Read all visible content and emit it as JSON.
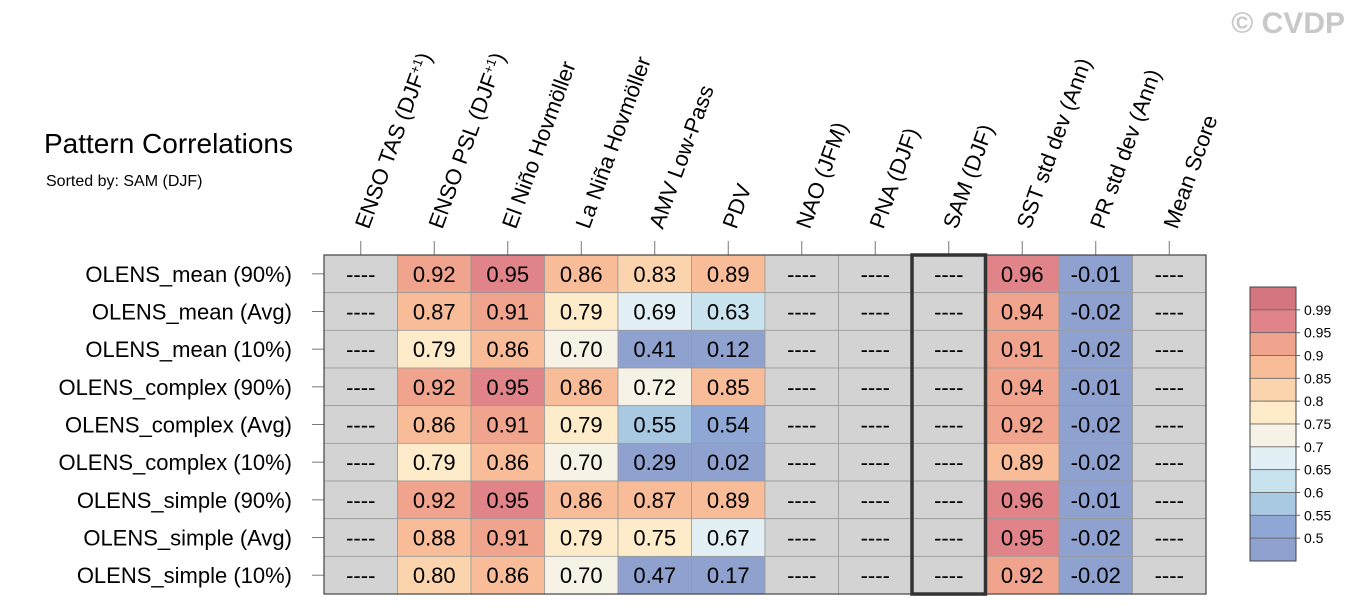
{
  "chart_data": {
    "type": "heatmap",
    "title": "Pattern Correlations",
    "subtitle": "Sorted by: SAM (DJF)",
    "watermark": "© CVDP",
    "columns": [
      "ENSO TAS (DJF+1)",
      "ENSO PSL (DJF+1)",
      "El Niño Hovmöller",
      "La Niña Hovmöller",
      "AMV Low-Pass",
      "PDV",
      "NAO (JFM)",
      "PNA (DJF)",
      "SAM (DJF)",
      "SST std dev (Ann)",
      "PR std dev (Ann)",
      "Mean Score"
    ],
    "rows": [
      "OLENS_mean (90%)",
      "OLENS_mean (Avg)",
      "OLENS_mean (10%)",
      "OLENS_complex (90%)",
      "OLENS_complex (Avg)",
      "OLENS_complex (10%)",
      "OLENS_simple (90%)",
      "OLENS_simple (Avg)",
      "OLENS_simple (10%)"
    ],
    "values": [
      [
        "----",
        "0.92",
        "0.95",
        "0.86",
        "0.83",
        "0.89",
        "----",
        "----",
        "----",
        "0.96",
        "-0.01",
        "----"
      ],
      [
        "----",
        "0.87",
        "0.91",
        "0.79",
        "0.69",
        "0.63",
        "----",
        "----",
        "----",
        "0.94",
        "-0.02",
        "----"
      ],
      [
        "----",
        "0.79",
        "0.86",
        "0.70",
        "0.41",
        "0.12",
        "----",
        "----",
        "----",
        "0.91",
        "-0.02",
        "----"
      ],
      [
        "----",
        "0.92",
        "0.95",
        "0.86",
        "0.72",
        "0.85",
        "----",
        "----",
        "----",
        "0.94",
        "-0.01",
        "----"
      ],
      [
        "----",
        "0.86",
        "0.91",
        "0.79",
        "0.55",
        "0.54",
        "----",
        "----",
        "----",
        "0.92",
        "-0.02",
        "----"
      ],
      [
        "----",
        "0.79",
        "0.86",
        "0.70",
        "0.29",
        "0.02",
        "----",
        "----",
        "----",
        "0.89",
        "-0.02",
        "----"
      ],
      [
        "----",
        "0.92",
        "0.95",
        "0.86",
        "0.87",
        "0.89",
        "----",
        "----",
        "----",
        "0.96",
        "-0.01",
        "----"
      ],
      [
        "----",
        "0.88",
        "0.91",
        "0.79",
        "0.75",
        "0.67",
        "----",
        "----",
        "----",
        "0.95",
        "-0.02",
        "----"
      ],
      [
        "----",
        "0.80",
        "0.86",
        "0.70",
        "0.47",
        "0.17",
        "----",
        "----",
        "----",
        "0.92",
        "-0.02",
        "----"
      ]
    ],
    "missing_label": "----",
    "highlighted_column": "SAM (DJF)",
    "colorbar": {
      "labels": [
        "0.99",
        "0.95",
        "0.9",
        "0.85",
        "0.8",
        "0.75",
        "0.7",
        "0.65",
        "0.6",
        "0.55",
        "0.5"
      ],
      "colors": [
        "#d4757f",
        "#e0848a",
        "#f0a48e",
        "#f8bc98",
        "#fbd3ad",
        "#fdebc9",
        "#f6f2e6",
        "#e2eff4",
        "#c9e3ee",
        "#a9c8e2",
        "#8ea7d4",
        "#8fa1cf"
      ]
    },
    "missing_color": "#d3d3d3"
  }
}
